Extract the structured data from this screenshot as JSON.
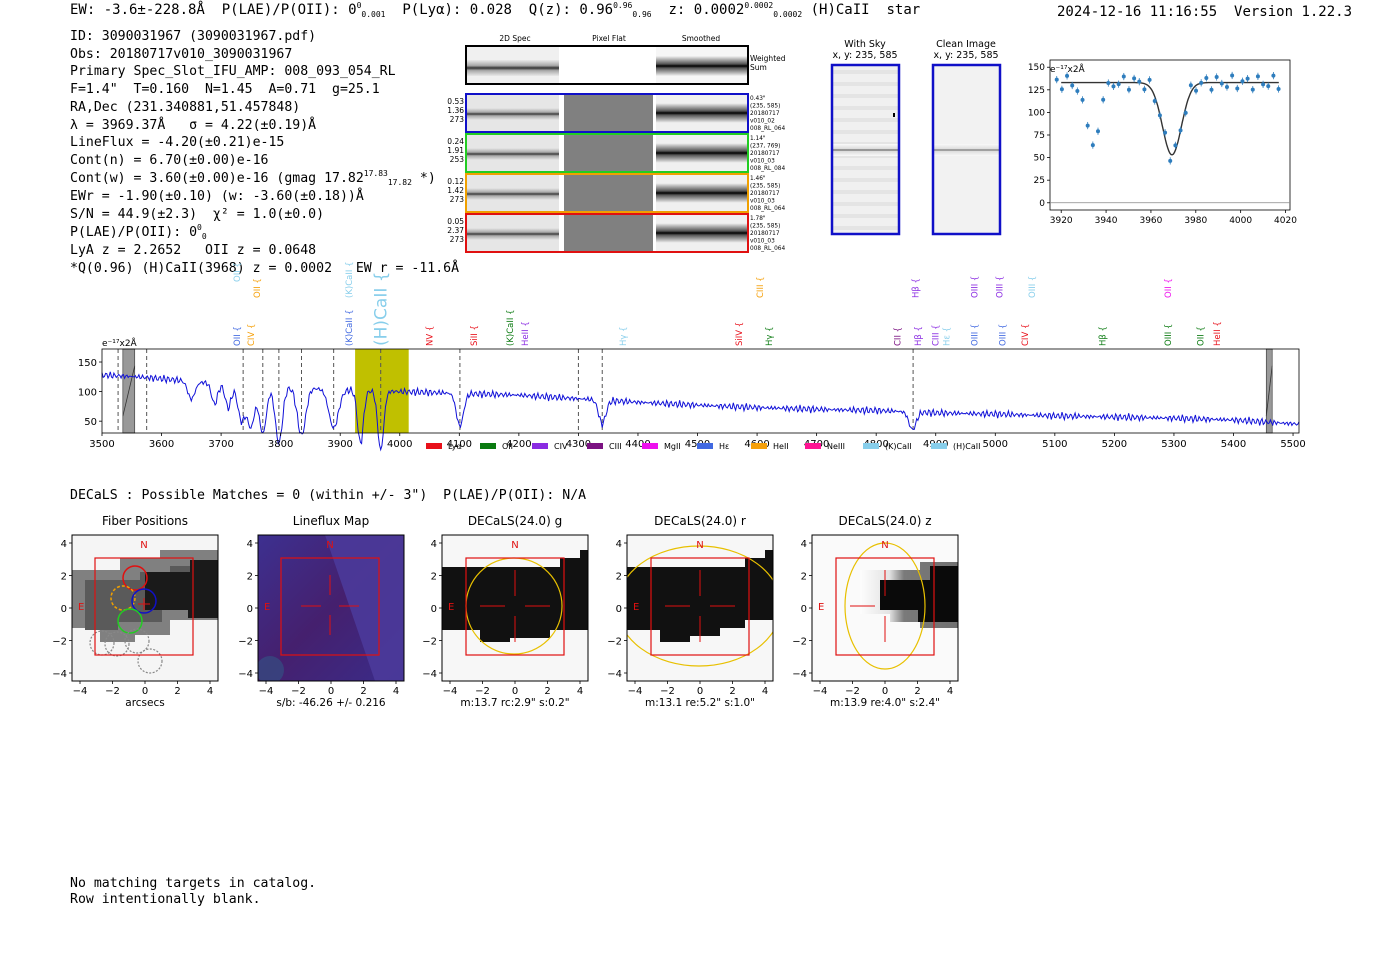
{
  "header": {
    "ew": "EW: -3.6±-228.8Å",
    "plae_label": "P(LAE)/P(OII): 0",
    "plae_sup": "0",
    "plae_sub": "0.001",
    "plya": "P(Lyα): 0.028",
    "qz": "Q(z): 0.96",
    "qz_sup": "0.96",
    "qz_sub": "0.96",
    "z": "z: 0.0002",
    "z_sup": "0.0002",
    "z_sub": "0.0002",
    "line_id": "(H)CaII",
    "classification": "star",
    "timestamp": "2024-12-16 11:16:55",
    "version": "Version 1.22.3"
  },
  "info": {
    "id": "ID: 3090031967 (3090031967.pdf)",
    "obs": "Obs: 20180717v010_3090031967",
    "primary": "Primary Spec_Slot_IFU_AMP: 008_093_054_RL",
    "fit": "F=1.4\"  T=0.160  N=1.45  A=0.71  g=25.1",
    "radec": "RA,Dec (231.340881,51.457848)",
    "lambda": "λ = 3969.37Å   σ = 4.22(±0.19)Å",
    "lineflux": "LineFlux = -4.20(±0.21)e-15",
    "contn": "Cont(n) = 6.70(±0.00)e-16",
    "contw": "Cont(w) = 3.60(±0.00)e-16 (gmag 17.82",
    "contw_sup": "17.83",
    "contw_sub": "17.82",
    "contw_end": " *)",
    "ewr": "EWr = -1.90(±0.10) (w: -3.60(±0.18))Å",
    "sn": "S/N = 44.9(±2.3)  χ² = 1.0(±0.0)",
    "plae": "P(LAE)/P(OII): 0",
    "plae_sup": "0",
    "plae_sub": "0",
    "lya": "LyA z = 2.2652   OII z = 0.0648",
    "q": "*Q(0.96) (H)CaII(3968) z = 0.0002   EW r = -11.6Å"
  },
  "cutouts": {
    "col_titles": [
      "2D Spec",
      "Pixel Flat",
      "Smoothed"
    ],
    "weighted_sum": [
      "Weighted",
      "Sum"
    ],
    "rows": [
      {
        "stats": [
          "0.53",
          "1.36",
          "273"
        ],
        "label": [
          "0.43\"",
          "(235, 585)",
          "20180717",
          "v010_02",
          "008_RL_064"
        ],
        "color": "#1010c8"
      },
      {
        "stats": [
          "0.24",
          "1.91",
          "253"
        ],
        "label": [
          "1.14\"",
          "(237, 769)",
          "20180717",
          "v010_03",
          "008_RL_084"
        ],
        "color": "#22cc22"
      },
      {
        "stats": [
          "0.12",
          "1.42",
          "273"
        ],
        "label": [
          "1.46\"",
          "(235, 585)",
          "20180717",
          "v010_03",
          "008_RL_064"
        ],
        "color": "#f0a000"
      },
      {
        "stats": [
          "0.05",
          "2.37",
          "273"
        ],
        "label": [
          "1.78\"",
          "(235, 585)",
          "20180717",
          "v010_03",
          "008_RL_064"
        ],
        "color": "#e01010"
      }
    ]
  },
  "sky_panels": {
    "with_sky": [
      "With Sky",
      "x, y: 235, 585"
    ],
    "clean": [
      "Clean Image",
      "x, y: 235, 585"
    ]
  },
  "line_fit": {
    "ylabel": "e⁻¹⁷x2Å",
    "x_ticks": [
      3920,
      3940,
      3960,
      3980,
      4000,
      4020
    ],
    "y_ticks": [
      0,
      25,
      50,
      75,
      100,
      125,
      150
    ],
    "xlim": [
      3915,
      4022
    ],
    "ylim": [
      -8,
      158
    ]
  },
  "chart_data": {
    "type": "line",
    "title": "",
    "ylabel": "e⁻¹⁷x2Å",
    "xlim": [
      3500,
      5510
    ],
    "ylim": [
      30,
      172
    ],
    "x_ticks": [
      3500,
      3600,
      3700,
      3800,
      3900,
      4000,
      4100,
      4200,
      4300,
      4400,
      4500,
      4600,
      4700,
      4800,
      4900,
      5000,
      5100,
      5200,
      5300,
      5400,
      5500
    ],
    "y_ticks": [
      50,
      100,
      150
    ],
    "continuum": [
      [
        3500,
        128
      ],
      [
        3560,
        125
      ],
      [
        3620,
        120
      ],
      [
        3700,
        113
      ],
      [
        3800,
        108
      ],
      [
        3900,
        103
      ],
      [
        4000,
        100
      ],
      [
        4100,
        97
      ],
      [
        4200,
        94
      ],
      [
        4300,
        88
      ],
      [
        4400,
        82
      ],
      [
        4500,
        77
      ],
      [
        4600,
        73
      ],
      [
        4700,
        70
      ],
      [
        4800,
        68
      ],
      [
        4900,
        64
      ],
      [
        5000,
        62
      ],
      [
        5100,
        59
      ],
      [
        5200,
        57
      ],
      [
        5300,
        55
      ],
      [
        5400,
        52
      ],
      [
        5510,
        45
      ]
    ],
    "absorptions": [
      [
        3650,
        30,
        6
      ],
      [
        3689,
        35,
        5
      ],
      [
        3712,
        40,
        5
      ],
      [
        3734,
        60,
        6
      ],
      [
        3750,
        70,
        6
      ],
      [
        3770,
        80,
        6
      ],
      [
        3797,
        95,
        6
      ],
      [
        3835,
        80,
        7
      ],
      [
        3889,
        65,
        8
      ],
      [
        3934,
        90,
        5
      ],
      [
        3968,
        100,
        5
      ],
      [
        4101,
        55,
        6
      ],
      [
        4340,
        40,
        6
      ],
      [
        4861,
        30,
        6
      ]
    ],
    "highlight_band": [
      3925,
      4015
    ],
    "masked_regions": [
      [
        3535,
        3555
      ],
      [
        5455,
        5465
      ]
    ],
    "dashed_lines": [
      3527,
      3575,
      3737,
      3770,
      3797,
      3835,
      3889,
      3968,
      4101,
      4300,
      4340,
      4862
    ],
    "legend": [
      {
        "label": "Lyα",
        "color": "#e8101a"
      },
      {
        "label": "OII",
        "color": "#0a7a10"
      },
      {
        "label": "CIV",
        "color": "#8a2be2"
      },
      {
        "label": "CIII",
        "color": "#7b1282"
      },
      {
        "label": "MgII",
        "color": "#ee10ee"
      },
      {
        "label": "Hε",
        "color": "#4169e1"
      },
      {
        "label": "HeII",
        "color": "#f5a00a"
      },
      {
        "label": "NeIII",
        "color": "#ff1493"
      },
      {
        "label": "(K)CaII",
        "color": "#87ceeb"
      },
      {
        "label": "(H)CaII",
        "color": "#87ceeb"
      }
    ],
    "line_labels": [
      {
        "w": 3727,
        "text": "OII",
        "color": "#87ceeb",
        "row": "top"
      },
      {
        "w": 3727,
        "text": "OII",
        "color": "#4169e1",
        "row": "low"
      },
      {
        "w": 3750,
        "text": "CIV",
        "color": "#f5a00a",
        "row": "low"
      },
      {
        "w": 3760,
        "text": "OII",
        "color": "#f5a00a",
        "row": "mid"
      },
      {
        "w": 3915,
        "text": "(K)CaII",
        "color": "#87ceeb",
        "row": "mid"
      },
      {
        "w": 3915,
        "text": "(K)CaII",
        "color": "#4169e1",
        "row": "low"
      },
      {
        "w": 3968,
        "text": "(H)CaII",
        "color": "#87ceeb",
        "row": "big"
      },
      {
        "w": 4050,
        "text": "NV",
        "color": "#e8101a",
        "row": "low"
      },
      {
        "w": 4125,
        "text": "SiII",
        "color": "#e8101a",
        "row": "low"
      },
      {
        "w": 4185,
        "text": "(K)CaII",
        "color": "#0a7a10",
        "row": "low"
      },
      {
        "w": 4210,
        "text": "HeII",
        "color": "#8a2be2",
        "row": "low"
      },
      {
        "w": 4375,
        "text": "Hγ",
        "color": "#87ceeb",
        "row": "low"
      },
      {
        "w": 4570,
        "text": "SiIV",
        "color": "#e8101a",
        "row": "low"
      },
      {
        "w": 4605,
        "text": "CIII",
        "color": "#f5a00a",
        "row": "mid"
      },
      {
        "w": 4620,
        "text": "Hγ",
        "color": "#0a7a10",
        "row": "low"
      },
      {
        "w": 4836,
        "text": "CII",
        "color": "#7b1282",
        "row": "low"
      },
      {
        "w": 4866,
        "text": "Hβ",
        "color": "#8a2be2",
        "row": "mid"
      },
      {
        "w": 4870,
        "text": "Hβ",
        "color": "#8a2be2",
        "row": "low"
      },
      {
        "w": 4900,
        "text": "CIII",
        "color": "#8a2be2",
        "row": "low"
      },
      {
        "w": 4918,
        "text": "Hε",
        "color": "#87ceeb",
        "row": "low"
      },
      {
        "w": 4965,
        "text": "OIII",
        "color": "#8a2be2",
        "row": "mid"
      },
      {
        "w": 4965,
        "text": "OIII",
        "color": "#4169e1",
        "row": "low"
      },
      {
        "w": 5007,
        "text": "OIII",
        "color": "#8a2be2",
        "row": "mid"
      },
      {
        "w": 5012,
        "text": "OIII",
        "color": "#4169e1",
        "row": "low"
      },
      {
        "w": 5050,
        "text": "CIV",
        "color": "#e8101a",
        "row": "low"
      },
      {
        "w": 5062,
        "text": "OIII",
        "color": "#87ceeb",
        "row": "mid"
      },
      {
        "w": 5180,
        "text": "Hβ",
        "color": "#0a7a10",
        "row": "low"
      },
      {
        "w": 5290,
        "text": "OII",
        "color": "#ee10ee",
        "row": "mid"
      },
      {
        "w": 5290,
        "text": "OIII",
        "color": "#0a7a10",
        "row": "low"
      },
      {
        "w": 5345,
        "text": "OII",
        "color": "#0a7a10",
        "row": "low"
      },
      {
        "w": 5372,
        "text": "HeII",
        "color": "#e8101a",
        "row": "low"
      }
    ]
  },
  "decals": {
    "title": "DECaLS : Possible Matches = 0 (within +/- 3\")  P(LAE)/P(OII): N/A",
    "panels": [
      {
        "title": "Fiber Positions",
        "caption": "arcsecs",
        "north": "N",
        "east": "E"
      },
      {
        "title": "Lineflux Map",
        "caption": "s/b: -46.26 +/- 0.216",
        "north": "N",
        "east": "E"
      },
      {
        "title": "DECaLS(24.0) g",
        "caption": "m:13.7 rc:2.9\"  s:0.2\"",
        "north": "N",
        "east": "E"
      },
      {
        "title": "DECaLS(24.0) r",
        "caption": "m:13.1  re:5.2\"  s:1.0\"",
        "north": "N",
        "east": "E"
      },
      {
        "title": "DECaLS(24.0) z",
        "caption": "m:13.9  re:4.0\"  s:2.4\"",
        "north": "N",
        "east": "E"
      }
    ],
    "x_ticks": [
      "−4",
      "−2",
      "0",
      "2",
      "4"
    ],
    "y_ticks": [
      "4",
      "2",
      "0",
      "−2",
      "−4"
    ]
  },
  "footer": {
    "line1": "No matching targets in catalog.",
    "line2": "Row intentionally blank."
  },
  "colors": {
    "spectrum": "#1010d8",
    "band": "#c0c000",
    "fit_point": "#2e7dbd",
    "ellipse": "#e8c000",
    "box": "#e01010"
  }
}
